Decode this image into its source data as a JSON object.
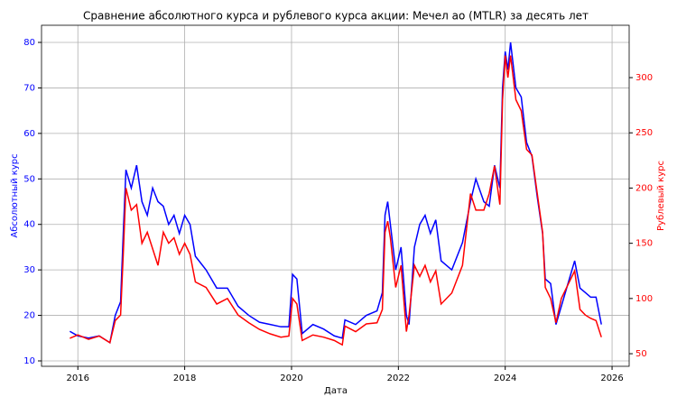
{
  "chart_data": {
    "type": "line",
    "title": "Сравнение абсолютного курса и рублевого курса акции: Мечел ао (MTLR) за десять лет",
    "x_label": "Дата",
    "y_label": "Абсолютный курс",
    "y2_label": "Рублевый курс",
    "x": [
      2015.85,
      2016.0,
      2016.2,
      2016.4,
      2016.6,
      2016.7,
      2016.8,
      2016.85,
      2016.9,
      2017.0,
      2017.1,
      2017.2,
      2017.3,
      2017.4,
      2017.5,
      2017.6,
      2017.7,
      2017.8,
      2017.9,
      2018.0,
      2018.1,
      2018.2,
      2018.4,
      2018.6,
      2018.8,
      2019.0,
      2019.2,
      2019.4,
      2019.6,
      2019.8,
      2019.95,
      2020.02,
      2020.1,
      2020.2,
      2020.4,
      2020.6,
      2020.8,
      2020.95,
      2021.0,
      2021.2,
      2021.4,
      2021.6,
      2021.7,
      2021.75,
      2021.8,
      2021.85,
      2021.95,
      2022.05,
      2022.15,
      2022.2,
      2022.3,
      2022.4,
      2022.5,
      2022.6,
      2022.7,
      2022.8,
      2023.0,
      2023.2,
      2023.35,
      2023.45,
      2023.6,
      2023.7,
      2023.8,
      2023.9,
      2023.95,
      2024.0,
      2024.05,
      2024.1,
      2024.2,
      2024.3,
      2024.4,
      2024.5,
      2024.6,
      2024.7,
      2024.75,
      2024.85,
      2024.95,
      2025.05,
      2025.2,
      2025.3,
      2025.4,
      2025.5,
      2025.6,
      2025.7,
      2025.8
    ],
    "series": [
      {
        "color": "#0000ff",
        "values": [
          16.5,
          15.5,
          15,
          15.5,
          14,
          20,
          23,
          38,
          52,
          48,
          53,
          45,
          42,
          48,
          45,
          44,
          40,
          42,
          38,
          42,
          40,
          33,
          30,
          26,
          26,
          22,
          20,
          18.5,
          18,
          17.5,
          17.5,
          29,
          28,
          16,
          18,
          17,
          15.5,
          15,
          19,
          18,
          20,
          21,
          25,
          42,
          45,
          40,
          30,
          35,
          20,
          18,
          35,
          40,
          42,
          38,
          41,
          32,
          30,
          36,
          45,
          50,
          45,
          44,
          53,
          48,
          70,
          78,
          74,
          80,
          70,
          68,
          58,
          55,
          46,
          38,
          28,
          27,
          18,
          22,
          28,
          32,
          26,
          25,
          24,
          24,
          18
        ]
      },
      {
        "color": "#ff0000",
        "axis": "y2",
        "values": [
          64,
          67,
          63,
          66,
          60,
          80,
          85,
          140,
          200,
          180,
          185,
          150,
          160,
          145,
          130,
          160,
          150,
          155,
          140,
          150,
          140,
          115,
          110,
          95,
          100,
          85,
          78,
          72,
          68,
          65,
          66,
          100,
          95,
          62,
          67,
          65,
          62,
          58,
          75,
          70,
          77,
          78,
          90,
          160,
          170,
          155,
          110,
          130,
          70,
          85,
          130,
          120,
          130,
          115,
          125,
          95,
          105,
          130,
          195,
          180,
          180,
          195,
          220,
          185,
          280,
          320,
          300,
          320,
          280,
          270,
          235,
          230,
          195,
          160,
          110,
          100,
          78,
          100,
          115,
          125,
          90,
          85,
          82,
          80,
          65
        ]
      }
    ],
    "xlim": [
      2015.32,
      2026.32
    ],
    "xticks": [
      2016,
      2018,
      2020,
      2022,
      2024,
      2026
    ],
    "ylim": [
      8.81,
      83.77
    ],
    "yticks": [
      10,
      20,
      30,
      40,
      50,
      60,
      70,
      80
    ],
    "y2lim": [
      38.6,
      347.4
    ],
    "y2ticks": [
      50,
      100,
      150,
      200,
      250,
      300
    ],
    "y_color": "#0000ff",
    "y2_color": "#ff0000",
    "grid": true
  }
}
